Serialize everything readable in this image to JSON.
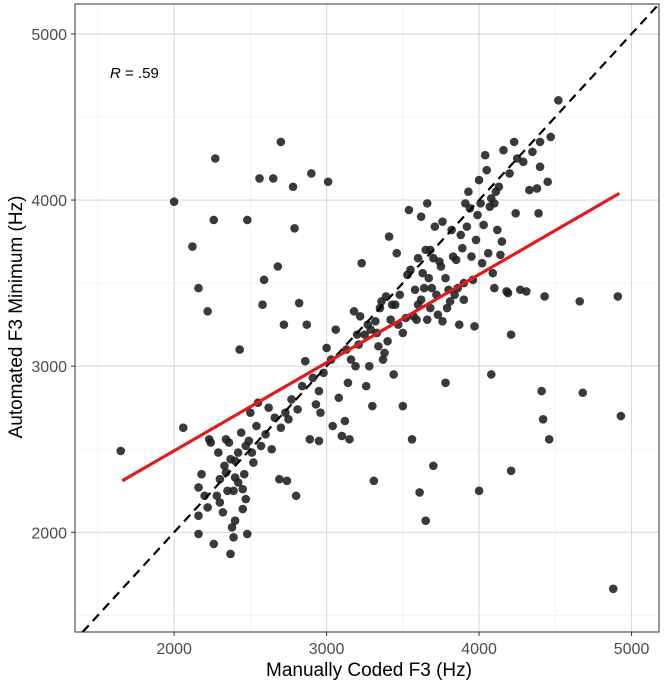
{
  "chart_data": {
    "type": "scatter",
    "title": "",
    "xlabel": "Manually Coded F3 (Hz)",
    "ylabel": "Automated F3 Minimum (Hz)",
    "xlim": [
      1350,
      5180
    ],
    "ylim": [
      1400,
      5180
    ],
    "x_ticks": [
      2000,
      3000,
      4000,
      5000
    ],
    "y_ticks": [
      2000,
      3000,
      4000,
      5000
    ],
    "x_tick_labels": [
      "2000",
      "3000",
      "4000",
      "5000"
    ],
    "y_tick_labels": [
      "2000",
      "3000",
      "4000",
      "5000"
    ],
    "grid": true,
    "annotation": {
      "prefix": "R",
      "text": " = .59"
    },
    "regression_line": {
      "x": [
        1660,
        4920
      ],
      "y": [
        2310,
        4040
      ],
      "color": "#e31a1c"
    },
    "identity_line": {
      "x": [
        1400,
        5180
      ],
      "y": [
        1400,
        5180
      ],
      "style": "dashed",
      "color": "#000000"
    },
    "point_color": "#1f1f1f",
    "points": [
      [
        1650,
        2490
      ],
      [
        2000,
        3990
      ],
      [
        2060,
        2630
      ],
      [
        2120,
        3720
      ],
      [
        2160,
        3470
      ],
      [
        2160,
        2270
      ],
      [
        2160,
        1990
      ],
      [
        2160,
        2100
      ],
      [
        2180,
        2350
      ],
      [
        2200,
        2220
      ],
      [
        2220,
        2150
      ],
      [
        2220,
        3330
      ],
      [
        2230,
        2560
      ],
      [
        2240,
        2540
      ],
      [
        2260,
        3880
      ],
      [
        2260,
        1930
      ],
      [
        2270,
        4250
      ],
      [
        2280,
        2220
      ],
      [
        2290,
        2480
      ],
      [
        2300,
        2320
      ],
      [
        2300,
        2180
      ],
      [
        2320,
        2120
      ],
      [
        2330,
        2400
      ],
      [
        2340,
        2360
      ],
      [
        2340,
        2560
      ],
      [
        2350,
        2250
      ],
      [
        2360,
        2540
      ],
      [
        2370,
        2440
      ],
      [
        2370,
        1870
      ],
      [
        2380,
        2030
      ],
      [
        2390,
        2250
      ],
      [
        2390,
        1970
      ],
      [
        2400,
        2430
      ],
      [
        2400,
        2330
      ],
      [
        2400,
        2070
      ],
      [
        2420,
        2300
      ],
      [
        2420,
        2480
      ],
      [
        2430,
        3100
      ],
      [
        2440,
        2600
      ],
      [
        2450,
        2140
      ],
      [
        2450,
        2260
      ],
      [
        2460,
        2350
      ],
      [
        2470,
        2520
      ],
      [
        2470,
        2200
      ],
      [
        2480,
        3880
      ],
      [
        2480,
        1990
      ],
      [
        2490,
        2550
      ],
      [
        2500,
        2720
      ],
      [
        2510,
        2480
      ],
      [
        2520,
        2420
      ],
      [
        2540,
        2640
      ],
      [
        2550,
        2780
      ],
      [
        2560,
        4130
      ],
      [
        2570,
        2520
      ],
      [
        2580,
        3370
      ],
      [
        2590,
        3520
      ],
      [
        2600,
        2590
      ],
      [
        2620,
        2750
      ],
      [
        2640,
        2500
      ],
      [
        2650,
        4130
      ],
      [
        2660,
        2690
      ],
      [
        2680,
        3600
      ],
      [
        2690,
        2320
      ],
      [
        2700,
        4350
      ],
      [
        2700,
        2630
      ],
      [
        2720,
        3250
      ],
      [
        2730,
        2720
      ],
      [
        2740,
        2310
      ],
      [
        2750,
        2680
      ],
      [
        2770,
        2800
      ],
      [
        2780,
        4080
      ],
      [
        2790,
        3830
      ],
      [
        2800,
        2220
      ],
      [
        2810,
        2740
      ],
      [
        2820,
        3380
      ],
      [
        2840,
        2880
      ],
      [
        2860,
        3030
      ],
      [
        2870,
        3250
      ],
      [
        2890,
        2560
      ],
      [
        2900,
        4160
      ],
      [
        2910,
        2930
      ],
      [
        2930,
        2770
      ],
      [
        2950,
        2550
      ],
      [
        2950,
        2850
      ],
      [
        2960,
        2720
      ],
      [
        2980,
        2960
      ],
      [
        3000,
        3110
      ],
      [
        3010,
        4110
      ],
      [
        3030,
        3040
      ],
      [
        3040,
        2640
      ],
      [
        3060,
        3220
      ],
      [
        3080,
        2810
      ],
      [
        3100,
        2580
      ],
      [
        3120,
        2670
      ],
      [
        3130,
        3100
      ],
      [
        3140,
        2900
      ],
      [
        3150,
        2560
      ],
      [
        3160,
        3040
      ],
      [
        3180,
        3330
      ],
      [
        3190,
        3000
      ],
      [
        3200,
        3190
      ],
      [
        3210,
        3130
      ],
      [
        3220,
        3300
      ],
      [
        3230,
        3620
      ],
      [
        3250,
        3190
      ],
      [
        3260,
        2880
      ],
      [
        3270,
        3250
      ],
      [
        3280,
        3000
      ],
      [
        3290,
        3220
      ],
      [
        3300,
        2760
      ],
      [
        3310,
        2310
      ],
      [
        3320,
        3270
      ],
      [
        3330,
        3200
      ],
      [
        3340,
        3120
      ],
      [
        3350,
        3350
      ],
      [
        3360,
        3390
      ],
      [
        3370,
        3040
      ],
      [
        3380,
        3080
      ],
      [
        3390,
        3420
      ],
      [
        3400,
        3150
      ],
      [
        3410,
        3780
      ],
      [
        3420,
        3280
      ],
      [
        3430,
        3370
      ],
      [
        3440,
        2950
      ],
      [
        3450,
        3370
      ],
      [
        3460,
        3680
      ],
      [
        3470,
        3250
      ],
      [
        3480,
        3430
      ],
      [
        3500,
        3200
      ],
      [
        3500,
        2760
      ],
      [
        3520,
        3290
      ],
      [
        3530,
        3550
      ],
      [
        3540,
        3940
      ],
      [
        3550,
        3580
      ],
      [
        3560,
        2560
      ],
      [
        3570,
        3300
      ],
      [
        3580,
        3460
      ],
      [
        3590,
        3280
      ],
      [
        3600,
        3370
      ],
      [
        3600,
        3650
      ],
      [
        3610,
        2240
      ],
      [
        3620,
        3900
      ],
      [
        3620,
        3400
      ],
      [
        3630,
        3560
      ],
      [
        3640,
        3470
      ],
      [
        3650,
        2070
      ],
      [
        3650,
        3700
      ],
      [
        3660,
        3280
      ],
      [
        3660,
        3980
      ],
      [
        3670,
        3530
      ],
      [
        3680,
        3350
      ],
      [
        3680,
        3700
      ],
      [
        3690,
        3470
      ],
      [
        3700,
        2400
      ],
      [
        3700,
        3650
      ],
      [
        3710,
        3840
      ],
      [
        3720,
        3430
      ],
      [
        3730,
        3310
      ],
      [
        3740,
        3630
      ],
      [
        3750,
        3600
      ],
      [
        3760,
        3270
      ],
      [
        3760,
        3870
      ],
      [
        3780,
        3530
      ],
      [
        3780,
        2900
      ],
      [
        3790,
        3350
      ],
      [
        3800,
        3460
      ],
      [
        3810,
        3390
      ],
      [
        3820,
        3820
      ],
      [
        3830,
        3660
      ],
      [
        3840,
        3430
      ],
      [
        3850,
        3640
      ],
      [
        3860,
        3470
      ],
      [
        3870,
        3250
      ],
      [
        3880,
        3790
      ],
      [
        3890,
        3710
      ],
      [
        3900,
        3500
      ],
      [
        3900,
        3400
      ],
      [
        3910,
        3980
      ],
      [
        3920,
        3840
      ],
      [
        3930,
        4050
      ],
      [
        3940,
        3950
      ],
      [
        3950,
        3660
      ],
      [
        3960,
        3520
      ],
      [
        3970,
        3240
      ],
      [
        3980,
        3760
      ],
      [
        3990,
        3910
      ],
      [
        4000,
        2250
      ],
      [
        4000,
        4120
      ],
      [
        4010,
        3980
      ],
      [
        4020,
        3620
      ],
      [
        4030,
        3850
      ],
      [
        4040,
        4270
      ],
      [
        4050,
        4180
      ],
      [
        4060,
        3680
      ],
      [
        4070,
        3960
      ],
      [
        4080,
        4010
      ],
      [
        4080,
        2950
      ],
      [
        4090,
        3560
      ],
      [
        4100,
        3980
      ],
      [
        4100,
        3470
      ],
      [
        4110,
        4050
      ],
      [
        4120,
        3820
      ],
      [
        4130,
        4080
      ],
      [
        4140,
        3670
      ],
      [
        4150,
        3750
      ],
      [
        4160,
        4300
      ],
      [
        4180,
        3450
      ],
      [
        4190,
        3440
      ],
      [
        4200,
        4160
      ],
      [
        4210,
        3190
      ],
      [
        4210,
        2370
      ],
      [
        4230,
        4350
      ],
      [
        4240,
        3920
      ],
      [
        4250,
        4250
      ],
      [
        4270,
        3460
      ],
      [
        4290,
        4230
      ],
      [
        4310,
        3450
      ],
      [
        4330,
        4060
      ],
      [
        4350,
        4290
      ],
      [
        4380,
        4070
      ],
      [
        4390,
        3920
      ],
      [
        4400,
        4200
      ],
      [
        4400,
        4350
      ],
      [
        4410,
        2850
      ],
      [
        4420,
        2680
      ],
      [
        4430,
        3420
      ],
      [
        4450,
        4110
      ],
      [
        4460,
        2560
      ],
      [
        4470,
        4380
      ],
      [
        4520,
        4600
      ],
      [
        4660,
        3390
      ],
      [
        4680,
        2840
      ],
      [
        4880,
        1660
      ],
      [
        4910,
        3420
      ],
      [
        4930,
        2700
      ]
    ]
  }
}
